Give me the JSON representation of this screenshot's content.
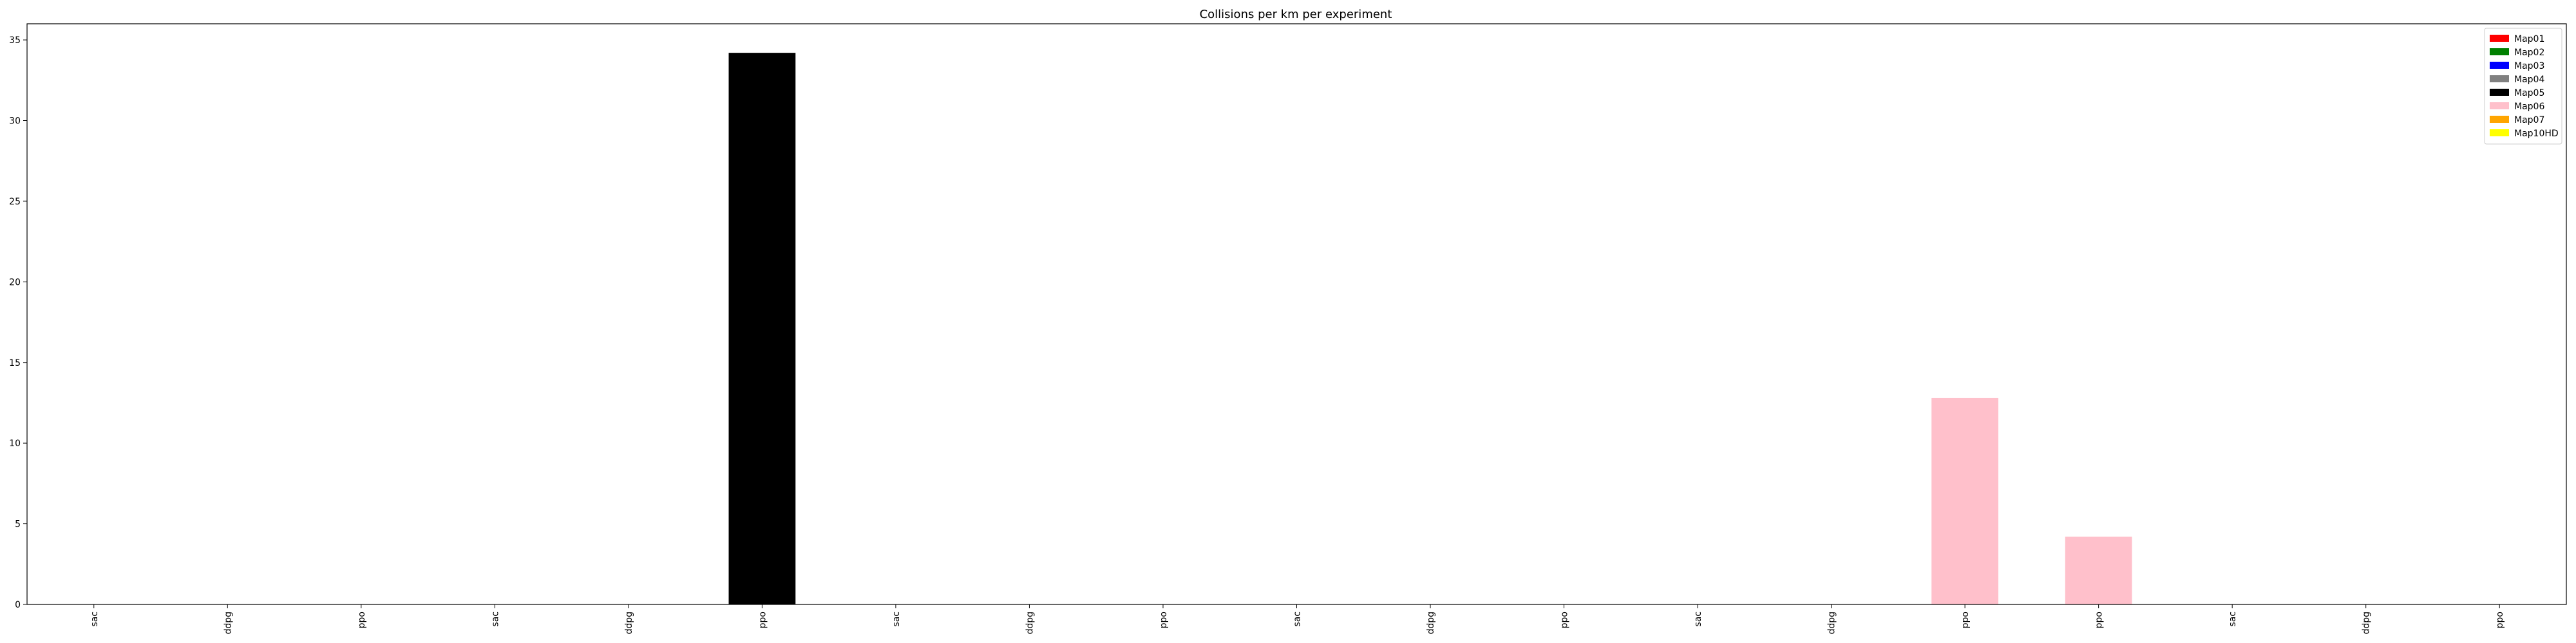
{
  "chart_data": {
    "type": "bar",
    "title": "Collisions per km per experiment",
    "xlabel": "",
    "ylabel": "",
    "ylim": [
      0,
      36
    ],
    "yticks": [
      0,
      5,
      10,
      15,
      20,
      25,
      30,
      35
    ],
    "categories": [
      "sac",
      "ddpg",
      "ppo",
      "sac",
      "ddpg",
      "ppo",
      "sac",
      "ddpg",
      "ppo",
      "sac",
      "ddpg",
      "ppo",
      "sac",
      "ddpg",
      "ppo",
      "ppo",
      "sac",
      "ddpg",
      "ppo"
    ],
    "bar_maps": [
      "Map01",
      "Map01",
      "Map01",
      "Map02",
      "Map02",
      "Map05",
      "Map03",
      "Map03",
      "Map03",
      "Map04",
      "Map04",
      "Map04",
      "Map05",
      "Map05",
      "Map06",
      "Map06",
      "Map07",
      "Map07",
      "Map10HD"
    ],
    "values": [
      0,
      0,
      0,
      0,
      0,
      34.2,
      0,
      0,
      0,
      0,
      0,
      0,
      0,
      0,
      12.8,
      4.2,
      0,
      0,
      0
    ],
    "legend": [
      {
        "name": "Map01",
        "color": "#ff0000"
      },
      {
        "name": "Map02",
        "color": "#008000"
      },
      {
        "name": "Map03",
        "color": "#0000ff"
      },
      {
        "name": "Map04",
        "color": "#808080"
      },
      {
        "name": "Map05",
        "color": "#000000"
      },
      {
        "name": "Map06",
        "color": "#ffc0cb"
      },
      {
        "name": "Map07",
        "color": "#ffa500"
      },
      {
        "name": "Map10HD",
        "color": "#ffff00"
      }
    ],
    "legend_position": "top-right",
    "grid": false
  }
}
